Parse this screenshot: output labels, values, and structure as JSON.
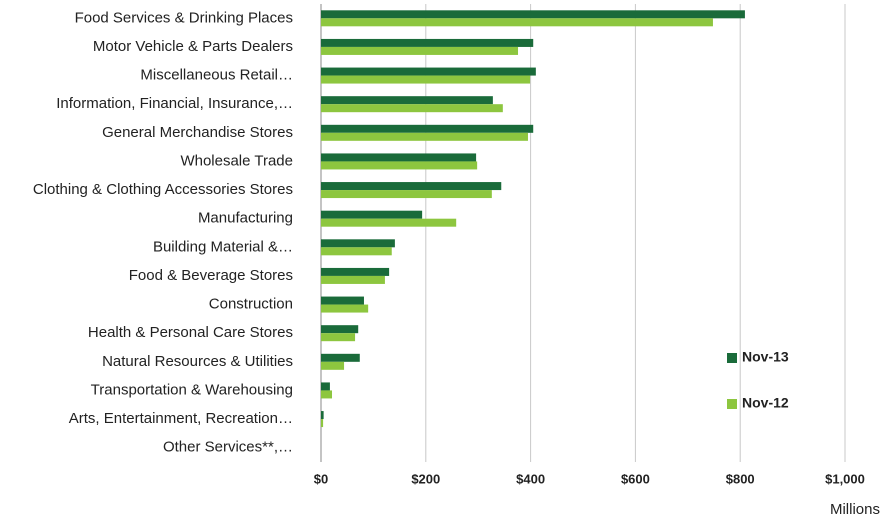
{
  "chart_data": {
    "type": "hbar",
    "x_label": "Millions",
    "categories": [
      "Food Services & Drinking Places",
      "Motor Vehicle & Parts Dealers",
      "Miscellaneous Retail…",
      "Information, Financial, Insurance,…",
      "General Merchandise Stores",
      "Wholesale Trade",
      "Clothing & Clothing Accessories Stores",
      "Manufacturing",
      "Building Material &…",
      "Food & Beverage Stores",
      "Construction",
      "Health & Personal Care Stores",
      "Natural Resources & Utilities",
      "Transportation & Warehousing",
      "Arts, Entertainment, Recreation…",
      "Other Services**,…"
    ],
    "series": [
      {
        "name": "Nov-13",
        "color": "#1a6b3a",
        "values": [
          809,
          405,
          410,
          328,
          405,
          296,
          344,
          193,
          141,
          130,
          82,
          71,
          74,
          17,
          5,
          0
        ]
      },
      {
        "name": "Nov-12",
        "color": "#8dc63f",
        "values": [
          748,
          376,
          399,
          347,
          395,
          298,
          326,
          258,
          135,
          122,
          90,
          65,
          44,
          21,
          4,
          0
        ]
      }
    ],
    "xlim": [
      0,
      1000
    ],
    "xticks": [
      {
        "value": 0,
        "label": "$0"
      },
      {
        "value": 200,
        "label": "$200"
      },
      {
        "value": 400,
        "label": "$400"
      },
      {
        "value": 600,
        "label": "$600"
      },
      {
        "value": 800,
        "label": "$800"
      },
      {
        "value": 1000,
        "label": "$1,000"
      }
    ],
    "grid": true
  }
}
